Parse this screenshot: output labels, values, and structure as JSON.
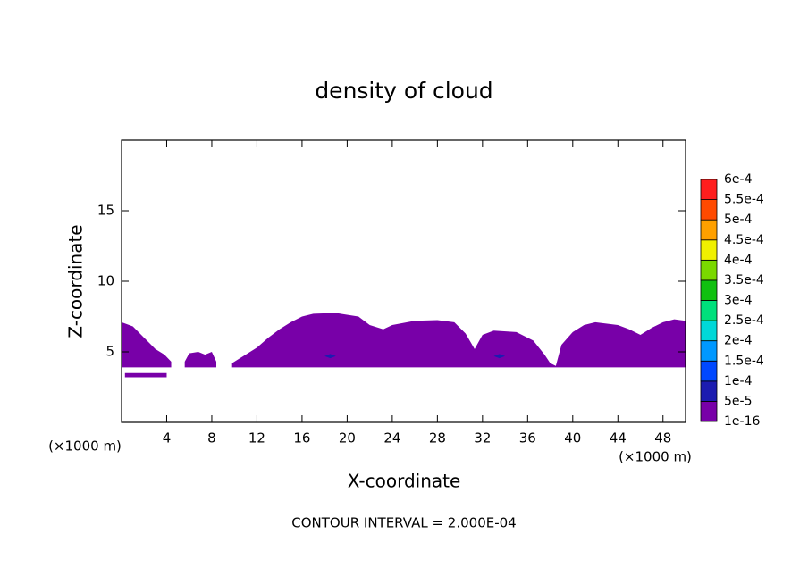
{
  "chart_data": {
    "type": "contour",
    "title": "density of cloud",
    "x_label": "X-coordinate",
    "y_label": "Z-coordinate",
    "x_unit": "(×1000 m)",
    "y_unit": "(×1000 m)",
    "annotation": "CONTOUR INTERVAL = 2.000E-04",
    "xlim": [
      0,
      50
    ],
    "ylim": [
      0,
      20
    ],
    "xticks": [
      4,
      8,
      12,
      16,
      20,
      24,
      28,
      32,
      36,
      40,
      44,
      48
    ],
    "yticks": [
      5,
      10,
      15
    ],
    "colorbar": {
      "lim": [
        1e-16,
        0.0006
      ],
      "ticks": [
        {
          "value": 1e-16,
          "label": "1e-16"
        },
        {
          "value": 5e-05,
          "label": "5e-5"
        },
        {
          "value": 0.0001,
          "label": "1e-4"
        },
        {
          "value": 0.00015,
          "label": "1.5e-4"
        },
        {
          "value": 0.0002,
          "label": "2e-4"
        },
        {
          "value": 0.00025,
          "label": "2.5e-4"
        },
        {
          "value": 0.0003,
          "label": "3e-4"
        },
        {
          "value": 0.00035,
          "label": "3.5e-4"
        },
        {
          "value": 0.0004,
          "label": "4e-4"
        },
        {
          "value": 0.00045,
          "label": "4.5e-4"
        },
        {
          "value": 0.0005,
          "label": "5e-4"
        },
        {
          "value": 0.00055,
          "label": "5.5e-4"
        },
        {
          "value": 0.0006,
          "label": "6e-4"
        }
      ],
      "colors": [
        "#7800a8",
        "#1c1cb0",
        "#0048ff",
        "#0098ff",
        "#00d8d8",
        "#00e07c",
        "#10c010",
        "#7ad800",
        "#f0f000",
        "#ffa000",
        "#ff4a00",
        "#ff1e1e",
        "#ff9a9a"
      ]
    },
    "regions": [
      {
        "level": 0,
        "x": [
          0,
          1,
          2,
          3,
          3.8,
          4.4,
          4.4,
          0
        ],
        "z": [
          7.1,
          6.8,
          6.0,
          5.2,
          4.8,
          4.3,
          3.9,
          3.9
        ]
      },
      {
        "level": 0,
        "x": [
          0.3,
          4.0,
          4.0,
          0.3
        ],
        "z": [
          3.5,
          3.5,
          3.2,
          3.2
        ]
      },
      {
        "level": 0,
        "x": [
          5.6,
          6.0,
          6.8,
          7.4,
          8.0,
          8.4,
          8.4,
          5.6
        ],
        "z": [
          4.3,
          4.9,
          5.0,
          4.8,
          5.0,
          4.3,
          3.9,
          3.9
        ]
      },
      {
        "level": 0,
        "x": [
          9.8,
          11,
          12,
          13,
          14,
          15,
          16,
          17,
          19,
          21,
          22,
          23.2,
          24,
          26,
          28,
          29.5,
          30.5,
          31.3,
          32,
          33,
          35,
          36.5,
          37.5,
          38,
          38.5,
          39,
          40,
          41,
          42,
          44,
          45,
          46,
          47,
          48,
          49,
          50,
          50,
          9.8
        ],
        "z": [
          4.2,
          4.8,
          5.3,
          6.0,
          6.6,
          7.1,
          7.5,
          7.7,
          7.75,
          7.5,
          6.9,
          6.6,
          6.9,
          7.2,
          7.25,
          7.1,
          6.3,
          5.2,
          6.2,
          6.5,
          6.4,
          5.8,
          4.8,
          4.2,
          4.0,
          5.5,
          6.4,
          6.9,
          7.1,
          6.9,
          6.6,
          6.2,
          6.7,
          7.1,
          7.3,
          7.2,
          3.9,
          3.9
        ]
      },
      {
        "level": 1,
        "x": [
          18.0,
          18.5,
          19.0,
          18.5
        ],
        "z": [
          4.7,
          4.85,
          4.7,
          4.55
        ]
      },
      {
        "level": 1,
        "x": [
          33.0,
          33.5,
          34.0,
          33.5
        ],
        "z": [
          4.7,
          4.85,
          4.7,
          4.55
        ]
      }
    ]
  }
}
